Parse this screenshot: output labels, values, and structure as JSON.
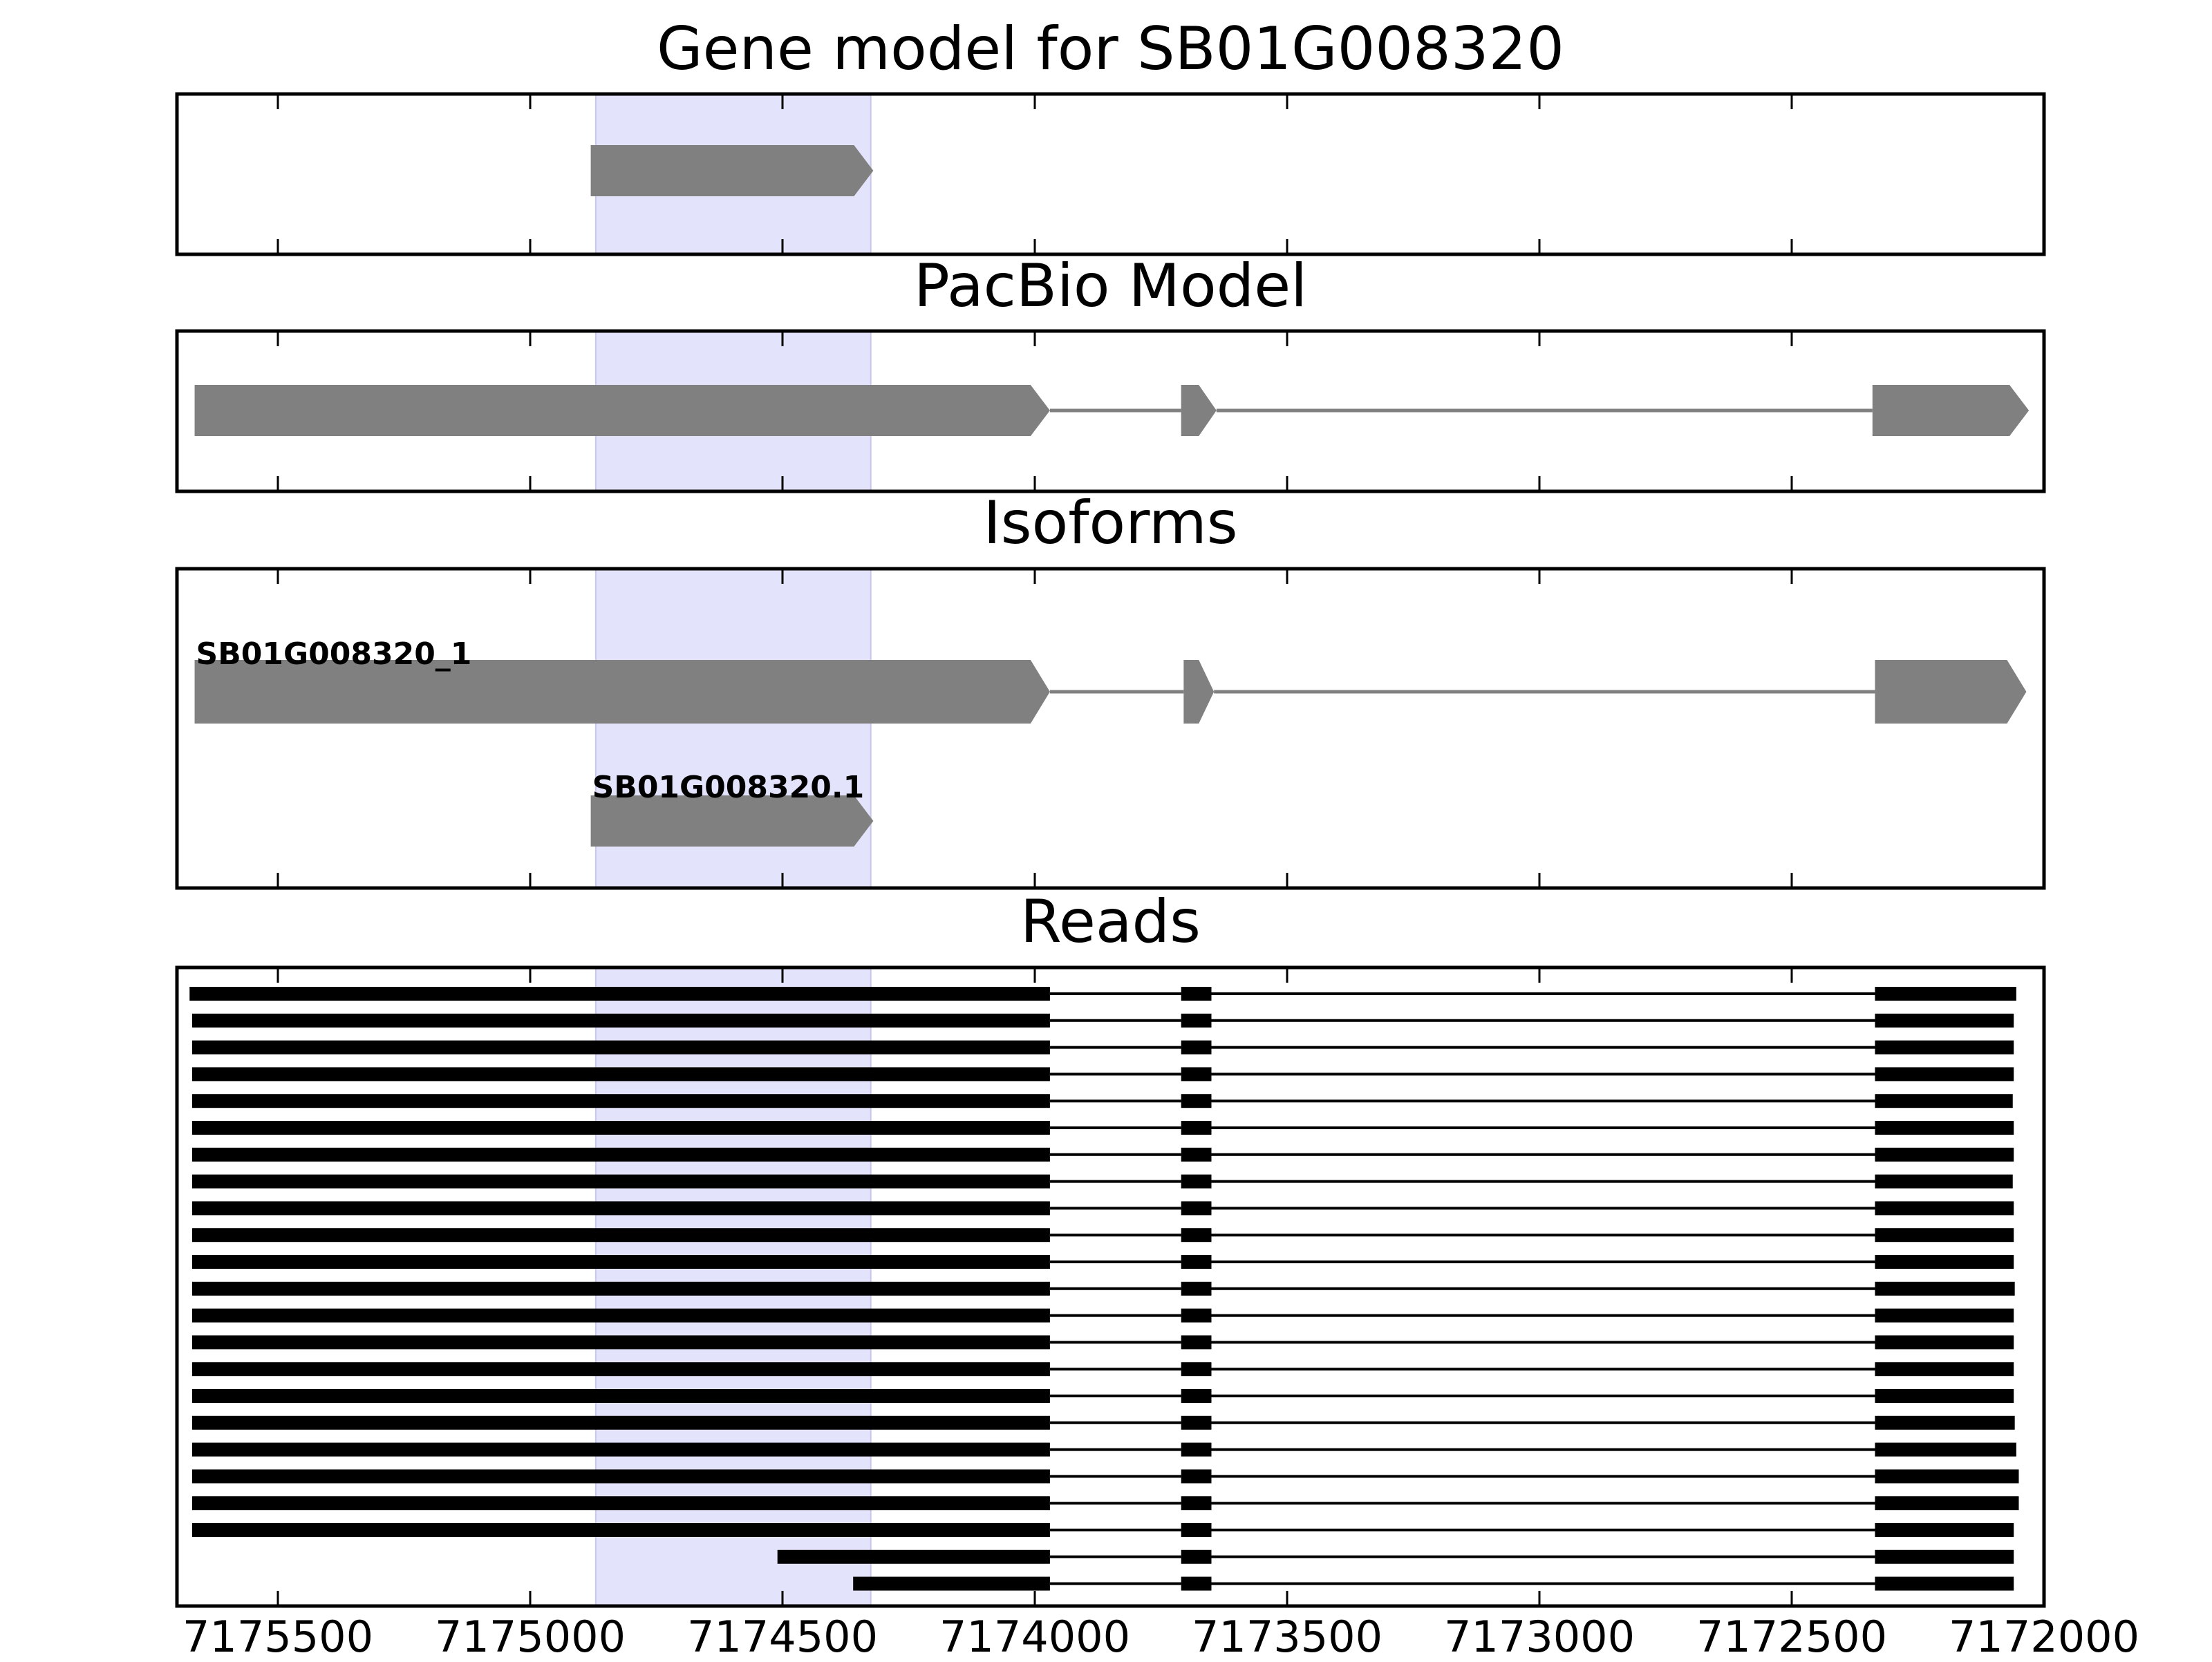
{
  "chart_data": {
    "type": "gene_track",
    "x_axis": {
      "reversed": true,
      "range": [
        7175700,
        7172000
      ],
      "ticks": [
        7175500,
        7175000,
        7174500,
        7174000,
        7173500,
        7173000,
        7172500,
        7172000
      ],
      "tick_labels": [
        "7175500",
        "7175000",
        "7174500",
        "7174000",
        "7173500",
        "7173000",
        "7172500",
        "7172000"
      ]
    },
    "highlight_region": {
      "start": 7174870,
      "end": 7174325,
      "color": "#e3e3fb"
    },
    "colors": {
      "model": "#808080",
      "reads": "#000000",
      "frame": "#000000"
    },
    "panels": [
      {
        "id": "gene-model",
        "title": "Gene model for SB01G008320",
        "tracks": [
          {
            "label": "",
            "strand": "-",
            "exons": [
              [
                7174880,
                7174320
              ]
            ]
          }
        ]
      },
      {
        "id": "pacbio-model",
        "title": "PacBio Model",
        "tracks": [
          {
            "label": "",
            "strand": "-",
            "exons": [
              [
                7175665,
                7173970
              ],
              [
                7173710,
                7173640
              ],
              [
                7172340,
                7172030
              ]
            ]
          }
        ]
      },
      {
        "id": "isoforms",
        "title": "Isoforms",
        "tracks": [
          {
            "label": "SB01G008320_1",
            "strand": "-",
            "exons": [
              [
                7175665,
                7173970
              ],
              [
                7173705,
                7173645
              ],
              [
                7172335,
                7172035
              ]
            ]
          },
          {
            "label": "SB01G008320.1",
            "strand": "-",
            "exons": [
              [
                7174880,
                7174320
              ]
            ]
          }
        ]
      },
      {
        "id": "reads",
        "title": "Reads",
        "reads": [
          [
            [
              7175675,
              7173970
            ],
            [
              7173710,
              7173650
            ],
            [
              7172335,
              7172055
            ]
          ],
          [
            [
              7175670,
              7173970
            ],
            [
              7173710,
              7173650
            ],
            [
              7172335,
              7172060
            ]
          ],
          [
            [
              7175670,
              7173970
            ],
            [
              7173710,
              7173650
            ],
            [
              7172335,
              7172060
            ]
          ],
          [
            [
              7175670,
              7173970
            ],
            [
              7173710,
              7173650
            ],
            [
              7172335,
              7172060
            ]
          ],
          [
            [
              7175670,
              7173970
            ],
            [
              7173710,
              7173650
            ],
            [
              7172335,
              7172062
            ]
          ],
          [
            [
              7175670,
              7173970
            ],
            [
              7173710,
              7173650
            ],
            [
              7172335,
              7172060
            ]
          ],
          [
            [
              7175670,
              7173970
            ],
            [
              7173710,
              7173650
            ],
            [
              7172335,
              7172060
            ]
          ],
          [
            [
              7175670,
              7173970
            ],
            [
              7173710,
              7173650
            ],
            [
              7172335,
              7172062
            ]
          ],
          [
            [
              7175670,
              7173970
            ],
            [
              7173710,
              7173650
            ],
            [
              7172335,
              7172060
            ]
          ],
          [
            [
              7175670,
              7173970
            ],
            [
              7173710,
              7173650
            ],
            [
              7172335,
              7172060
            ]
          ],
          [
            [
              7175670,
              7173970
            ],
            [
              7173710,
              7173650
            ],
            [
              7172335,
              7172060
            ]
          ],
          [
            [
              7175670,
              7173970
            ],
            [
              7173710,
              7173650
            ],
            [
              7172335,
              7172058
            ]
          ],
          [
            [
              7175670,
              7173970
            ],
            [
              7173710,
              7173650
            ],
            [
              7172335,
              7172060
            ]
          ],
          [
            [
              7175670,
              7173970
            ],
            [
              7173710,
              7173650
            ],
            [
              7172335,
              7172060
            ]
          ],
          [
            [
              7175670,
              7173970
            ],
            [
              7173710,
              7173650
            ],
            [
              7172335,
              7172060
            ]
          ],
          [
            [
              7175670,
              7173970
            ],
            [
              7173710,
              7173650
            ],
            [
              7172335,
              7172060
            ]
          ],
          [
            [
              7175670,
              7173970
            ],
            [
              7173710,
              7173650
            ],
            [
              7172335,
              7172058
            ]
          ],
          [
            [
              7175670,
              7173970
            ],
            [
              7173710,
              7173650
            ],
            [
              7172335,
              7172055
            ]
          ],
          [
            [
              7175670,
              7173970
            ],
            [
              7173710,
              7173650
            ],
            [
              7172335,
              7172050
            ]
          ],
          [
            [
              7175670,
              7173970
            ],
            [
              7173710,
              7173650
            ],
            [
              7172335,
              7172050
            ]
          ],
          [
            [
              7175670,
              7173970
            ],
            [
              7173710,
              7173650
            ],
            [
              7172335,
              7172060
            ]
          ],
          [
            [
              7174510,
              7173970
            ],
            [
              7173710,
              7173650
            ],
            [
              7172335,
              7172060
            ]
          ],
          [
            [
              7174360,
              7173970
            ],
            [
              7173710,
              7173650
            ],
            [
              7172335,
              7172060
            ]
          ]
        ]
      }
    ]
  }
}
